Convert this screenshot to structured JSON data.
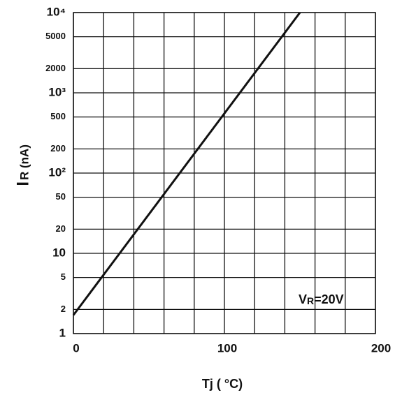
{
  "chart_data": {
    "type": "line",
    "ylabel": {
      "main": "I",
      "sub": "R (nA)"
    },
    "xlabel": "Tj ( °C)",
    "annotation": {
      "main": "V",
      "sub": "R",
      "rest": "=20V"
    },
    "x": [
      0,
      150
    ],
    "values": [
      1.7,
      10000
    ],
    "color": "#111111",
    "xlim": [
      0,
      200
    ],
    "xticks": [
      0,
      100,
      200
    ],
    "xgrid": [
      20,
      40,
      60,
      80,
      120,
      140,
      160,
      180
    ],
    "ylim": [
      1,
      10000
    ],
    "ylog": true,
    "yticks": [
      1,
      2,
      5,
      10,
      20,
      50,
      {
        "value": 100,
        "label": "10²"
      },
      200,
      500,
      {
        "value": 1000,
        "label": "10³"
      },
      2000,
      5000,
      {
        "value": 10000,
        "label": "10⁴"
      }
    ],
    "grid": true
  }
}
